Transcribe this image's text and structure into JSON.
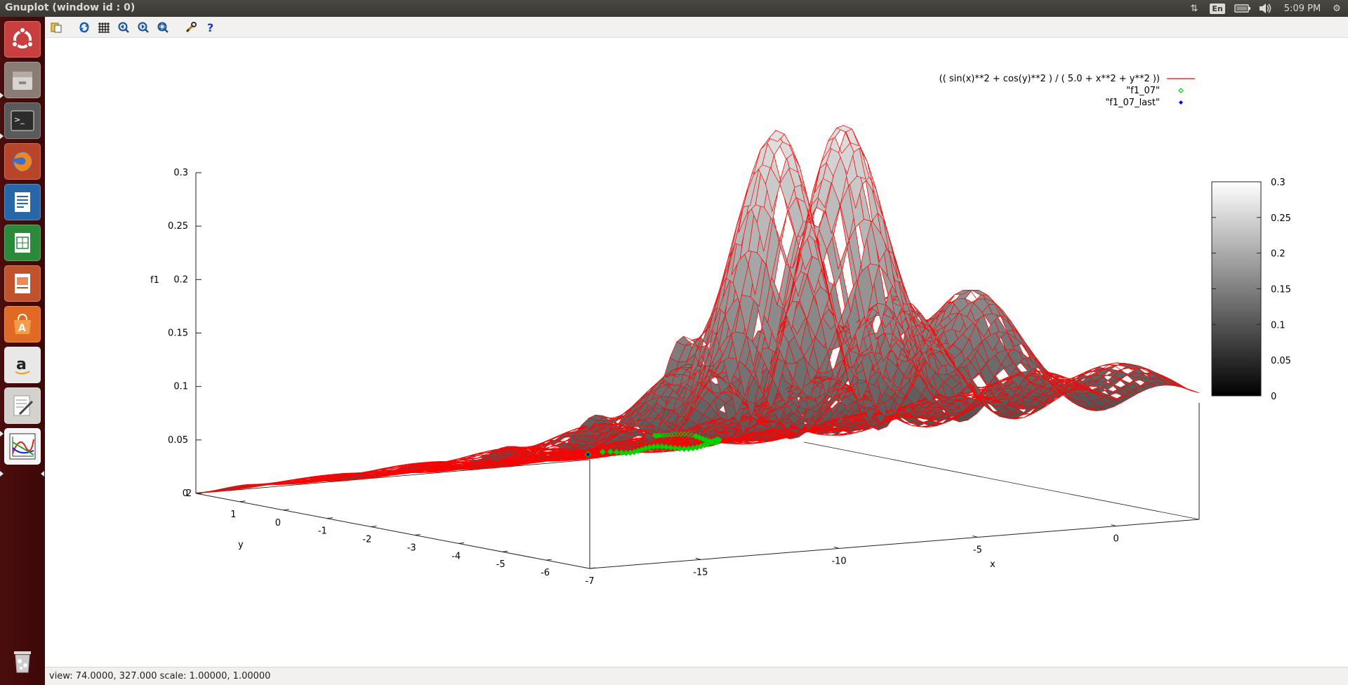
{
  "window": {
    "title": "Gnuplot (window id : 0)"
  },
  "tray": {
    "lang": "En",
    "clock": "5:09 PM"
  },
  "launcher": {
    "items": [
      {
        "name": "ubuntu-dash-icon"
      },
      {
        "name": "files-icon"
      },
      {
        "name": "terminal-icon"
      },
      {
        "name": "firefox-icon"
      },
      {
        "name": "writer-icon"
      },
      {
        "name": "calc-icon"
      },
      {
        "name": "impress-icon"
      },
      {
        "name": "software-center-icon"
      },
      {
        "name": "amazon-icon"
      },
      {
        "name": "text-editor-icon"
      },
      {
        "name": "gnuplot-icon"
      }
    ],
    "trash": "trash-icon"
  },
  "toolbar": {
    "tools": [
      "copy-clipboard-icon",
      "replot-icon",
      "grid-icon",
      "zoom-previous-icon",
      "zoom-next-icon",
      "autoscale-icon",
      "options-icon",
      "help-icon"
    ]
  },
  "plot": {
    "legend": [
      {
        "label": "(( sin(x)**2 + cos(y)**2 ) / ( 5.0 + x**2 + y**2 ))",
        "color": "#ff0000",
        "style": "line"
      },
      {
        "label": "\"f1_07\"",
        "color": "#00d000",
        "style": "diamond-open"
      },
      {
        "label": "\"f1_07_last\"",
        "color": "#0000ee",
        "style": "diamond-filled"
      }
    ],
    "zlabel": "f1",
    "xlabel": "x",
    "ylabel": "y",
    "z_ticks": [
      "0.3",
      "0.25",
      "0.2",
      "0.15",
      "0.1",
      "0.05",
      "0"
    ],
    "y_ticks": [
      "2",
      "1",
      "0",
      "-1",
      "-2",
      "-3",
      "-4",
      "-5",
      "-6",
      "-7"
    ],
    "x_ticks": [
      "-15",
      "-10",
      "-5",
      "0"
    ],
    "colorbox_ticks": [
      "0.3",
      "0.25",
      "0.2",
      "0.15",
      "0.1",
      "0.05",
      "0"
    ]
  },
  "chart_data": {
    "type": "surface",
    "function": "(( sin(x)**2 + cos(y)**2 ) / ( 5.0 + x**2 + y**2 ))",
    "xrange": [
      -19,
      3
    ],
    "yrange": [
      -7,
      2
    ],
    "zrange": [
      0,
      0.3
    ],
    "cbrange": [
      0,
      0.3
    ],
    "view": [
      74,
      327
    ],
    "series": [
      {
        "name": "\"f1_07\"",
        "style": "points"
      },
      {
        "name": "\"f1_07_last\"",
        "style": "points"
      }
    ]
  },
  "status": {
    "text": "view: 74.0000, 327.000  scale: 1.00000, 1.00000"
  }
}
